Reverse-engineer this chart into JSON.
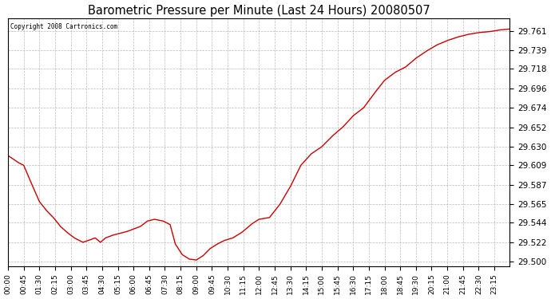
{
  "title": "Barometric Pressure per Minute (Last 24 Hours) 20080507",
  "copyright": "Copyright 2008 Cartronics.com",
  "line_color": "#cc0000",
  "background_color": "#ffffff",
  "plot_bg_color": "#ffffff",
  "grid_color": "#aaaaaa",
  "yticks": [
    29.5,
    29.522,
    29.544,
    29.565,
    29.587,
    29.609,
    29.63,
    29.652,
    29.674,
    29.696,
    29.718,
    29.739,
    29.761
  ],
  "ylim": [
    29.495,
    29.775
  ],
  "xtick_labels": [
    "00:00",
    "00:45",
    "01:30",
    "02:15",
    "03:00",
    "03:45",
    "04:30",
    "05:15",
    "06:00",
    "06:45",
    "07:30",
    "08:15",
    "09:00",
    "09:45",
    "10:30",
    "11:15",
    "12:00",
    "12:45",
    "13:30",
    "14:15",
    "15:00",
    "15:45",
    "16:30",
    "17:15",
    "18:00",
    "18:45",
    "19:30",
    "20:15",
    "21:00",
    "21:45",
    "22:30",
    "23:15"
  ],
  "keypoints_x": [
    0,
    30,
    45,
    60,
    90,
    110,
    130,
    150,
    170,
    190,
    215,
    230,
    250,
    265,
    280,
    300,
    320,
    340,
    360,
    380,
    400,
    420,
    445,
    465,
    480,
    500,
    520,
    540,
    560,
    580,
    600,
    620,
    645,
    670,
    700,
    720,
    750,
    780,
    810,
    840,
    870,
    900,
    930,
    960,
    990,
    1020,
    1050,
    1080,
    1110,
    1140,
    1170,
    1200,
    1230,
    1260,
    1290,
    1320,
    1350,
    1380,
    1410,
    1439
  ],
  "keypoints_y": [
    29.62,
    29.612,
    29.609,
    29.595,
    29.568,
    29.558,
    29.55,
    29.54,
    29.533,
    29.527,
    29.522,
    29.524,
    29.527,
    29.522,
    29.527,
    29.53,
    29.532,
    29.534,
    29.537,
    29.54,
    29.546,
    29.548,
    29.546,
    29.542,
    29.52,
    29.508,
    29.503,
    29.502,
    29.507,
    29.515,
    29.52,
    29.524,
    29.527,
    29.533,
    29.543,
    29.548,
    29.55,
    29.565,
    29.585,
    29.609,
    29.622,
    29.63,
    29.642,
    29.652,
    29.665,
    29.674,
    29.69,
    29.705,
    29.714,
    29.72,
    29.73,
    29.738,
    29.745,
    29.75,
    29.754,
    29.757,
    29.759,
    29.76,
    29.762,
    29.763
  ]
}
